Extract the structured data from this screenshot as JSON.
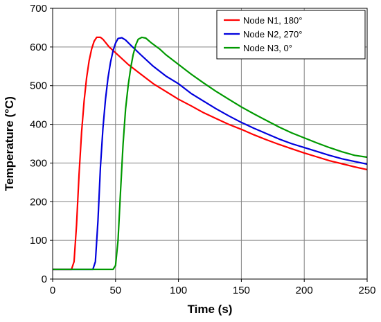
{
  "chart_data": {
    "type": "line",
    "title": "",
    "xlabel": "Time (s)",
    "ylabel": "Temperature (°C)",
    "xlim": [
      0,
      250
    ],
    "ylim": [
      0,
      700
    ],
    "xticks": [
      0,
      50,
      100,
      150,
      200,
      250
    ],
    "yticks": [
      0,
      100,
      200,
      300,
      400,
      500,
      600,
      700
    ],
    "grid": true,
    "legend_position": "top-right",
    "series": [
      {
        "name": "Node N1, 180°",
        "color": "#ff0000",
        "points": [
          [
            0,
            25
          ],
          [
            15,
            25
          ],
          [
            17,
            45
          ],
          [
            19,
            140
          ],
          [
            21,
            270
          ],
          [
            23,
            380
          ],
          [
            25,
            460
          ],
          [
            27,
            520
          ],
          [
            29,
            565
          ],
          [
            31,
            595
          ],
          [
            33,
            615
          ],
          [
            35,
            625
          ],
          [
            38,
            625
          ],
          [
            40,
            620
          ],
          [
            45,
            600
          ],
          [
            50,
            585
          ],
          [
            60,
            555
          ],
          [
            70,
            530
          ],
          [
            80,
            505
          ],
          [
            90,
            485
          ],
          [
            100,
            465
          ],
          [
            110,
            448
          ],
          [
            120,
            430
          ],
          [
            130,
            415
          ],
          [
            140,
            400
          ],
          [
            150,
            387
          ],
          [
            160,
            373
          ],
          [
            170,
            360
          ],
          [
            180,
            348
          ],
          [
            190,
            337
          ],
          [
            200,
            326
          ],
          [
            210,
            316
          ],
          [
            220,
            306
          ],
          [
            230,
            298
          ],
          [
            240,
            290
          ],
          [
            250,
            283
          ]
        ]
      },
      {
        "name": "Node N2, 270°",
        "color": "#0000dd",
        "points": [
          [
            0,
            25
          ],
          [
            32,
            25
          ],
          [
            34,
            45
          ],
          [
            36,
            150
          ],
          [
            38,
            290
          ],
          [
            40,
            390
          ],
          [
            42,
            465
          ],
          [
            44,
            520
          ],
          [
            46,
            560
          ],
          [
            48,
            590
          ],
          [
            50,
            610
          ],
          [
            52,
            622
          ],
          [
            55,
            624
          ],
          [
            58,
            618
          ],
          [
            62,
            605
          ],
          [
            70,
            580
          ],
          [
            80,
            550
          ],
          [
            90,
            525
          ],
          [
            100,
            505
          ],
          [
            110,
            480
          ],
          [
            120,
            460
          ],
          [
            130,
            440
          ],
          [
            140,
            422
          ],
          [
            150,
            405
          ],
          [
            160,
            390
          ],
          [
            170,
            376
          ],
          [
            180,
            362
          ],
          [
            190,
            350
          ],
          [
            200,
            340
          ],
          [
            210,
            330
          ],
          [
            220,
            320
          ],
          [
            230,
            311
          ],
          [
            240,
            304
          ],
          [
            250,
            297
          ]
        ]
      },
      {
        "name": "Node N3, 0°",
        "color": "#009900",
        "points": [
          [
            0,
            25
          ],
          [
            48,
            25
          ],
          [
            50,
            35
          ],
          [
            52,
            100
          ],
          [
            54,
            230
          ],
          [
            56,
            350
          ],
          [
            58,
            440
          ],
          [
            60,
            500
          ],
          [
            62,
            545
          ],
          [
            64,
            580
          ],
          [
            66,
            605
          ],
          [
            68,
            620
          ],
          [
            71,
            625
          ],
          [
            74,
            623
          ],
          [
            78,
            612
          ],
          [
            85,
            595
          ],
          [
            90,
            580
          ],
          [
            100,
            555
          ],
          [
            110,
            530
          ],
          [
            120,
            507
          ],
          [
            130,
            485
          ],
          [
            140,
            465
          ],
          [
            150,
            445
          ],
          [
            160,
            427
          ],
          [
            170,
            410
          ],
          [
            180,
            393
          ],
          [
            190,
            378
          ],
          [
            200,
            365
          ],
          [
            210,
            352
          ],
          [
            220,
            340
          ],
          [
            230,
            329
          ],
          [
            240,
            320
          ],
          [
            250,
            315
          ]
        ]
      }
    ]
  }
}
